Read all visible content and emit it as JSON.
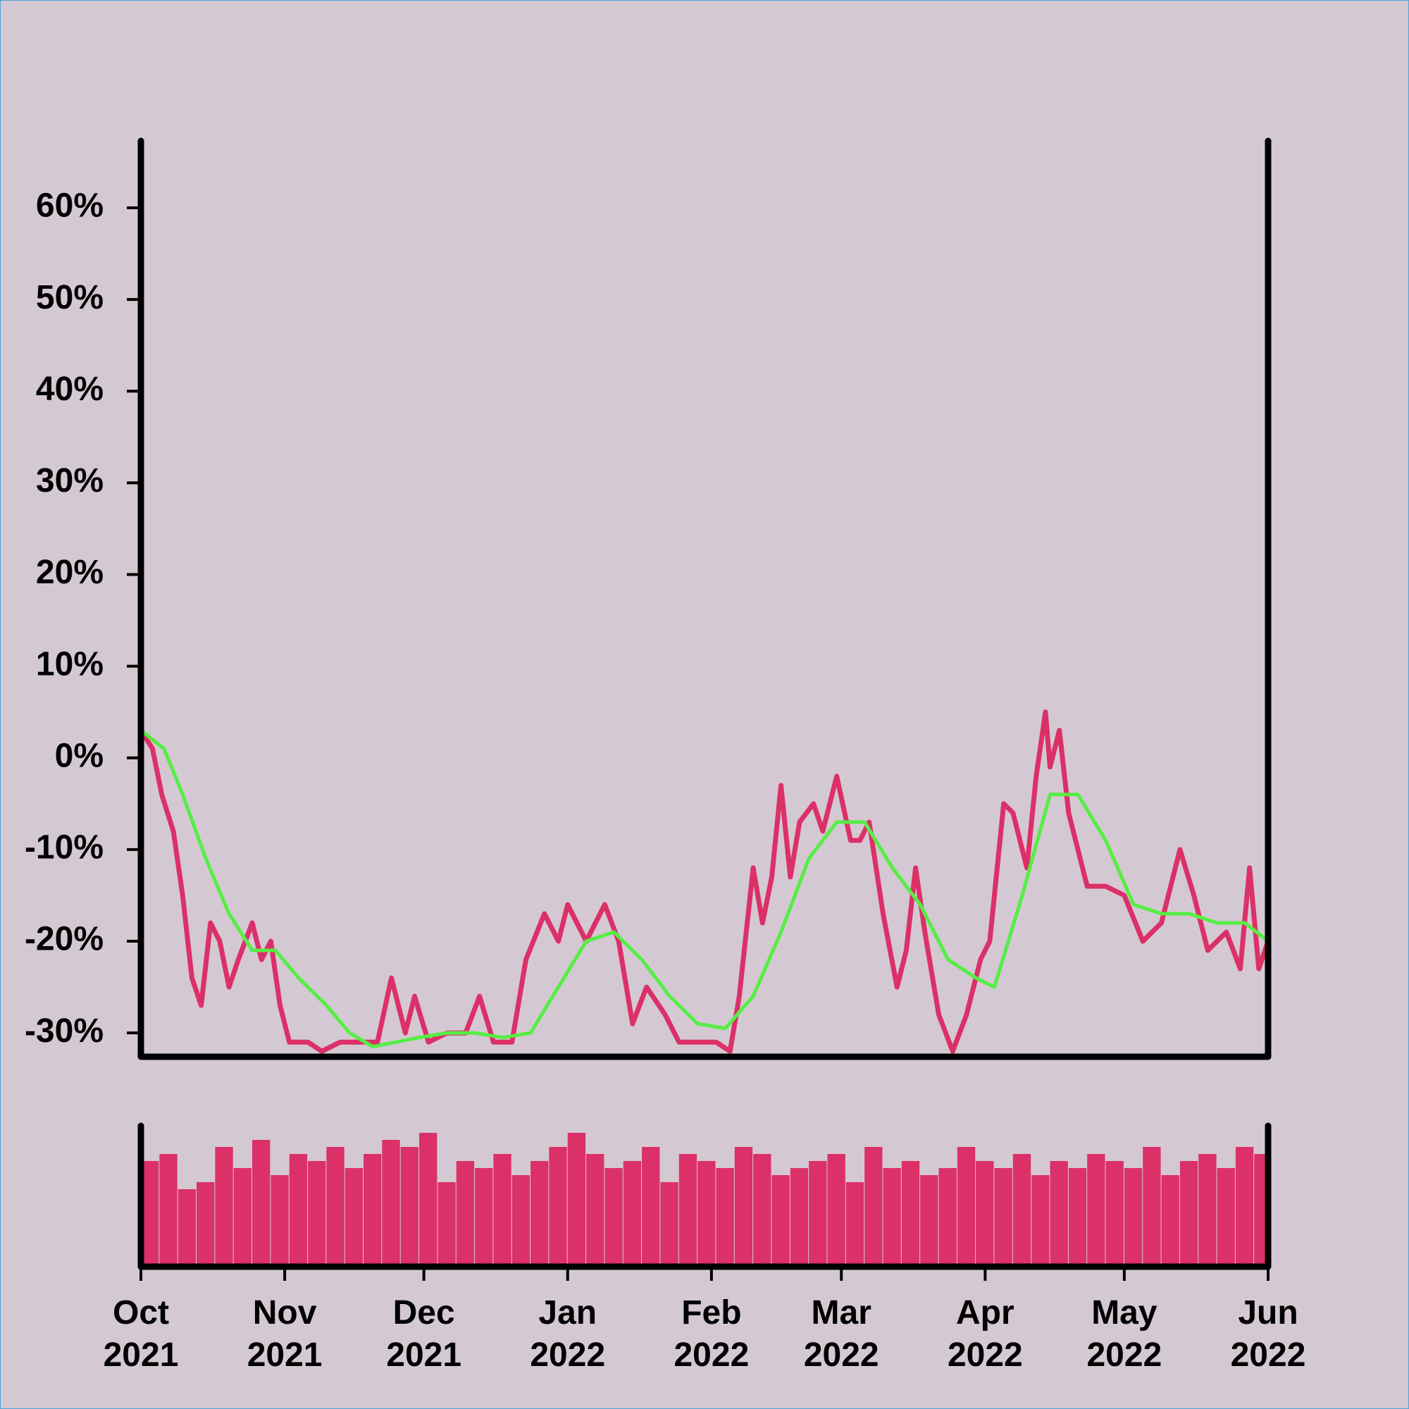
{
  "chart_data": [
    {
      "type": "line",
      "xlim": [
        0,
        243
      ],
      "ylim": [
        -32.6,
        67.3
      ],
      "yticks": [
        {
          "value": -30,
          "label": "-30%"
        },
        {
          "value": -20,
          "label": "-20%"
        },
        {
          "value": -10,
          "label": "-10%"
        },
        {
          "value": 0,
          "label": "0%"
        },
        {
          "value": 10,
          "label": "10%"
        },
        {
          "value": 20,
          "label": "20%"
        },
        {
          "value": 30,
          "label": "30%"
        },
        {
          "value": 40,
          "label": "40%"
        },
        {
          "value": 50,
          "label": "50%"
        },
        {
          "value": 60,
          "label": "60%"
        }
      ],
      "series": [
        {
          "color": "#dc3068",
          "x": [
            0,
            2.5,
            4.5,
            7,
            9,
            11,
            13,
            15,
            17,
            19,
            21,
            24,
            26,
            28,
            30,
            32,
            36,
            39,
            43,
            47,
            51,
            54,
            57,
            59,
            62,
            66,
            70,
            73,
            76,
            80,
            83,
            87,
            90,
            92,
            96,
            100,
            103,
            106,
            109,
            113,
            116,
            120,
            124,
            127,
            129,
            132,
            134,
            136,
            138,
            140,
            142,
            145,
            147,
            150,
            153,
            155,
            157,
            160,
            163,
            165,
            167,
            169,
            172,
            175,
            178,
            181,
            183,
            186,
            188,
            191,
            193,
            195,
            196,
            198,
            200,
            202,
            204,
            208,
            212,
            216,
            220,
            224,
            227,
            230,
            234,
            237,
            239,
            241,
            243
          ],
          "values": [
            3,
            1,
            -4,
            -8,
            -15,
            -24,
            -27,
            -18,
            -20,
            -25,
            -22,
            -18,
            -22,
            -20,
            -27,
            -31,
            -31,
            -32,
            -31,
            -31,
            -31,
            -24,
            -30,
            -26,
            -31,
            -30,
            -30,
            -26,
            -31,
            -31,
            -22,
            -17,
            -20,
            -16,
            -20,
            -16,
            -20,
            -29,
            -25,
            -28,
            -31,
            -31,
            -31,
            -32,
            -26,
            -12,
            -18,
            -13,
            -3,
            -13,
            -7,
            -5,
            -8,
            -2,
            -9,
            -9,
            -7,
            -17,
            -25,
            -21,
            -12,
            -19,
            -28,
            -32,
            -28,
            -22,
            -20,
            -5,
            -6,
            -12,
            -2,
            5,
            -1,
            3,
            -6,
            -10,
            -14,
            -14,
            -15,
            -20,
            -18,
            -10,
            -15,
            -21,
            -19,
            -23,
            -12,
            -23,
            -20
          ]
        },
        {
          "color": "#55ee44",
          "x": [
            0,
            5,
            9,
            14,
            19,
            24,
            29,
            34,
            40,
            45,
            50,
            55,
            60,
            66,
            72,
            78,
            84,
            90,
            96,
            102,
            108,
            114,
            120,
            126,
            132,
            138,
            144,
            150,
            156,
            162,
            168,
            174,
            180,
            184,
            190,
            196,
            202,
            208,
            214,
            220,
            226,
            232,
            238,
            243
          ],
          "values": [
            3,
            1,
            -4,
            -11,
            -17,
            -21,
            -21,
            -24,
            -27,
            -30,
            -31.5,
            -31,
            -30.5,
            -30,
            -30,
            -30.5,
            -30,
            -25,
            -20,
            -19,
            -22,
            -26,
            -29,
            -29.5,
            -26,
            -19,
            -11,
            -7,
            -7,
            -12,
            -16,
            -22,
            -24,
            -25,
            -15,
            -4,
            -4,
            -9,
            -16,
            -17,
            -17,
            -18,
            -18,
            -20
          ]
        }
      ]
    },
    {
      "type": "bar",
      "color": "#dc3068",
      "xlim": [
        0,
        243
      ],
      "ylim": [
        0,
        100
      ],
      "xticks": [
        {
          "value": 0,
          "label": "Oct 2021"
        },
        {
          "value": 31,
          "label": "Nov 2021"
        },
        {
          "value": 61,
          "label": "Dec 2021"
        },
        {
          "value": 92,
          "label": "Jan 2022"
        },
        {
          "value": 123,
          "label": "Feb 2022"
        },
        {
          "value": 151,
          "label": "Mar 2022"
        },
        {
          "value": 182,
          "label": "Apr 2022"
        },
        {
          "value": 212,
          "label": "May 2022"
        },
        {
          "value": 243,
          "label": "Jun 2022"
        }
      ],
      "x": [
        0,
        4,
        8,
        12,
        16,
        20,
        24,
        28,
        32,
        36,
        40,
        44,
        48,
        52,
        56,
        60,
        64,
        68,
        72,
        76,
        80,
        84,
        88,
        92,
        96,
        100,
        104,
        108,
        112,
        116,
        120,
        124,
        128,
        132,
        136,
        140,
        144,
        148,
        152,
        156,
        160,
        164,
        168,
        172,
        176,
        180,
        184,
        188,
        192,
        196,
        200,
        204,
        208,
        212,
        216,
        220,
        224,
        228,
        232,
        236,
        240
      ],
      "values": [
        75,
        80,
        55,
        60,
        85,
        70,
        90,
        65,
        80,
        75,
        85,
        70,
        80,
        90,
        85,
        95,
        60,
        75,
        70,
        80,
        65,
        75,
        85,
        95,
        80,
        70,
        75,
        85,
        60,
        80,
        75,
        70,
        85,
        80,
        65,
        70,
        75,
        80,
        60,
        85,
        70,
        75,
        65,
        70,
        85,
        75,
        70,
        80,
        65,
        75,
        70,
        80,
        75,
        70,
        85,
        65,
        75,
        80,
        70,
        85,
        80
      ]
    }
  ]
}
